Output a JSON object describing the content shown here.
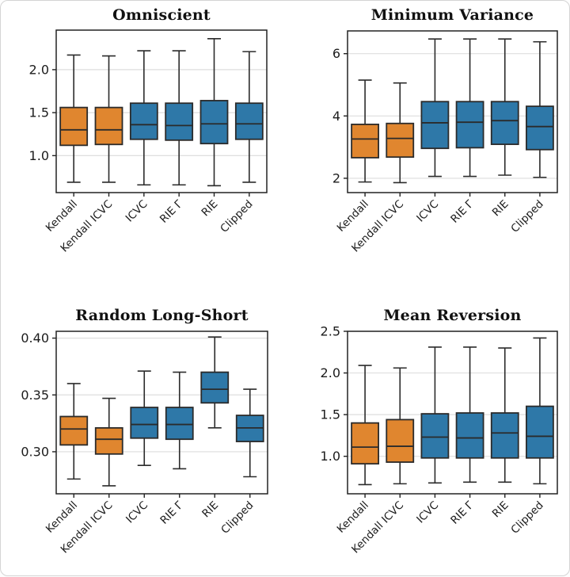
{
  "figure": {
    "background": "#ffffff",
    "border_color": "#d4d4d4"
  },
  "palette": {
    "orange": "#e0862f",
    "blue": "#2e78a8",
    "edge": "#2b2b2b",
    "grid": "#dedede",
    "spine": "#222222",
    "tick_text": "#1c1c1c"
  },
  "categories": [
    "Kendall",
    "Kendall ICVC",
    "ICVC",
    "RIE Γ",
    "RIE",
    "Clipped"
  ],
  "box_color_keys": [
    "orange",
    "orange",
    "blue",
    "blue",
    "blue",
    "blue"
  ],
  "chart_data": [
    {
      "type": "box",
      "title": "Omniscient",
      "ylim": [
        0.57,
        2.46
      ],
      "grid": true,
      "yticks": [
        {
          "value": 1.0,
          "label": "1.0"
        },
        {
          "value": 1.5,
          "label": "1.5"
        },
        {
          "value": 2.0,
          "label": "2.0"
        }
      ],
      "boxes": [
        {
          "whislo": 0.69,
          "q1": 1.12,
          "med": 1.3,
          "q3": 1.56,
          "whishi": 2.17
        },
        {
          "whislo": 0.69,
          "q1": 1.13,
          "med": 1.3,
          "q3": 1.56,
          "whishi": 2.16
        },
        {
          "whislo": 0.66,
          "q1": 1.19,
          "med": 1.36,
          "q3": 1.61,
          "whishi": 2.22
        },
        {
          "whislo": 0.66,
          "q1": 1.18,
          "med": 1.35,
          "q3": 1.61,
          "whishi": 2.22
        },
        {
          "whislo": 0.65,
          "q1": 1.14,
          "med": 1.37,
          "q3": 1.64,
          "whishi": 2.36
        },
        {
          "whislo": 0.69,
          "q1": 1.19,
          "med": 1.37,
          "q3": 1.61,
          "whishi": 2.21
        }
      ]
    },
    {
      "type": "box",
      "title": "Minimum Variance",
      "ylim": [
        1.54,
        6.73
      ],
      "grid": true,
      "yticks": [
        {
          "value": 2,
          "label": "2"
        },
        {
          "value": 4,
          "label": "4"
        },
        {
          "value": 6,
          "label": "6"
        }
      ],
      "boxes": [
        {
          "whislo": 1.88,
          "q1": 2.66,
          "med": 3.26,
          "q3": 3.73,
          "whishi": 5.15
        },
        {
          "whislo": 1.86,
          "q1": 2.68,
          "med": 3.28,
          "q3": 3.76,
          "whishi": 5.06
        },
        {
          "whislo": 2.06,
          "q1": 2.96,
          "med": 3.78,
          "q3": 4.46,
          "whishi": 6.47
        },
        {
          "whislo": 2.06,
          "q1": 2.98,
          "med": 3.8,
          "q3": 4.46,
          "whishi": 6.47
        },
        {
          "whislo": 2.1,
          "q1": 3.09,
          "med": 3.85,
          "q3": 4.46,
          "whishi": 6.47
        },
        {
          "whislo": 2.03,
          "q1": 2.92,
          "med": 3.66,
          "q3": 4.31,
          "whishi": 6.38
        }
      ]
    },
    {
      "type": "box",
      "title": "Random Long-Short",
      "ylim": [
        0.263,
        0.406
      ],
      "grid": true,
      "yticks": [
        {
          "value": 0.3,
          "label": "0.30"
        },
        {
          "value": 0.35,
          "label": "0.35"
        },
        {
          "value": 0.4,
          "label": "0.40"
        }
      ],
      "boxes": [
        {
          "whislo": 0.276,
          "q1": 0.306,
          "med": 0.32,
          "q3": 0.331,
          "whishi": 0.36
        },
        {
          "whislo": 0.27,
          "q1": 0.298,
          "med": 0.311,
          "q3": 0.321,
          "whishi": 0.347
        },
        {
          "whislo": 0.288,
          "q1": 0.312,
          "med": 0.324,
          "q3": 0.339,
          "whishi": 0.371
        },
        {
          "whislo": 0.285,
          "q1": 0.311,
          "med": 0.324,
          "q3": 0.339,
          "whishi": 0.37
        },
        {
          "whislo": 0.321,
          "q1": 0.343,
          "med": 0.355,
          "q3": 0.37,
          "whishi": 0.401
        },
        {
          "whislo": 0.278,
          "q1": 0.309,
          "med": 0.321,
          "q3": 0.332,
          "whishi": 0.355
        }
      ]
    },
    {
      "type": "box",
      "title": "Mean Reversion",
      "ylim": [
        0.55,
        2.5
      ],
      "grid": true,
      "yticks": [
        {
          "value": 1.0,
          "label": "1.0"
        },
        {
          "value": 1.5,
          "label": "1.5"
        },
        {
          "value": 2.0,
          "label": "2.0"
        },
        {
          "value": 2.5,
          "label": "2.5"
        }
      ],
      "boxes": [
        {
          "whislo": 0.66,
          "q1": 0.91,
          "med": 1.11,
          "q3": 1.4,
          "whishi": 2.09
        },
        {
          "whislo": 0.67,
          "q1": 0.93,
          "med": 1.12,
          "q3": 1.44,
          "whishi": 2.06
        },
        {
          "whislo": 0.68,
          "q1": 0.98,
          "med": 1.23,
          "q3": 1.51,
          "whishi": 2.31
        },
        {
          "whislo": 0.69,
          "q1": 0.98,
          "med": 1.22,
          "q3": 1.52,
          "whishi": 2.31
        },
        {
          "whislo": 0.69,
          "q1": 0.98,
          "med": 1.28,
          "q3": 1.52,
          "whishi": 2.3
        },
        {
          "whislo": 0.67,
          "q1": 0.98,
          "med": 1.24,
          "q3": 1.6,
          "whishi": 2.42
        }
      ]
    }
  ]
}
